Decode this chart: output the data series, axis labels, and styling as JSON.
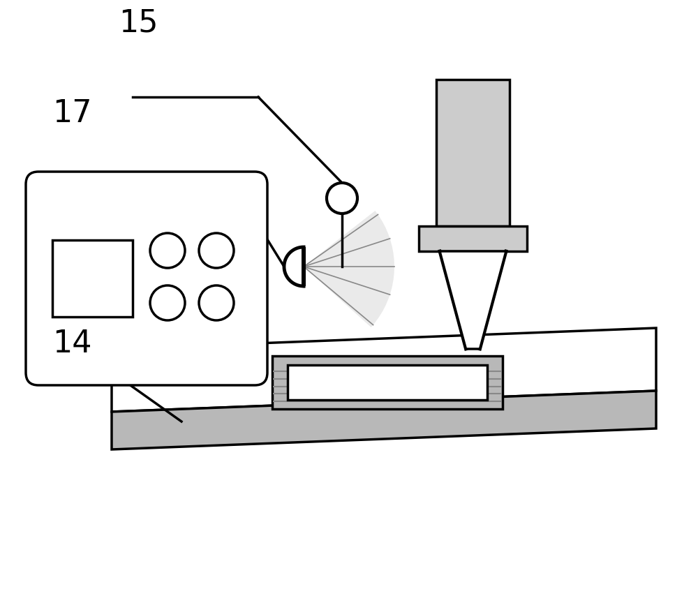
{
  "bg_color": "#ffffff",
  "line_color": "#000000",
  "gray_fill": "#b8b8b8",
  "light_gray": "#cccccc",
  "label_15": "15",
  "label_17": "17",
  "label_14": "14",
  "label_fontsize": 32,
  "lw": 2.5
}
